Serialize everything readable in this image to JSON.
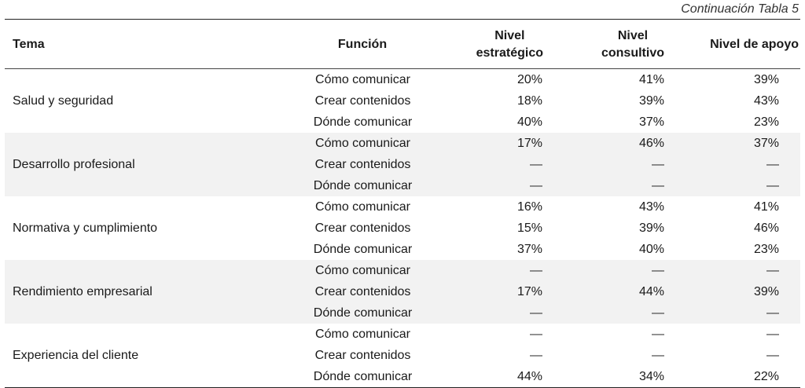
{
  "caption": "Continuación Tabla 5",
  "headers": {
    "tema": "Tema",
    "funcion": "Función",
    "estrategico_1": "Nivel",
    "estrategico_2": "estratégico",
    "consultivo_1": "Nivel",
    "consultivo_2": "consultivo",
    "apoyo": "Nivel de apoyo"
  },
  "groups": [
    {
      "tema": "Salud y seguridad",
      "rows": [
        {
          "funcion": "Cómo comunicar",
          "estrategico": "20%",
          "consultivo": "41%",
          "apoyo": "39%"
        },
        {
          "funcion": "Crear contenidos",
          "estrategico": "18%",
          "consultivo": "39%",
          "apoyo": "43%"
        },
        {
          "funcion": "Dónde comunicar",
          "estrategico": "40%",
          "consultivo": "37%",
          "apoyo": "23%"
        }
      ]
    },
    {
      "tema": "Desarrollo profesional",
      "rows": [
        {
          "funcion": "Cómo comunicar",
          "estrategico": "17%",
          "consultivo": "46%",
          "apoyo": "37%"
        },
        {
          "funcion": "Crear contenidos",
          "estrategico": "—",
          "consultivo": "—",
          "apoyo": "—"
        },
        {
          "funcion": "Dónde comunicar",
          "estrategico": "—",
          "consultivo": "—",
          "apoyo": "—"
        }
      ]
    },
    {
      "tema": "Normativa y cumplimiento",
      "rows": [
        {
          "funcion": "Cómo comunicar",
          "estrategico": "16%",
          "consultivo": "43%",
          "apoyo": "41%"
        },
        {
          "funcion": "Crear contenidos",
          "estrategico": "15%",
          "consultivo": "39%",
          "apoyo": "46%"
        },
        {
          "funcion": "Dónde comunicar",
          "estrategico": "37%",
          "consultivo": "40%",
          "apoyo": "23%"
        }
      ]
    },
    {
      "tema": "Rendimiento empresarial",
      "rows": [
        {
          "funcion": "Cómo comunicar",
          "estrategico": "—",
          "consultivo": "—",
          "apoyo": "—"
        },
        {
          "funcion": "Crear contenidos",
          "estrategico": "17%",
          "consultivo": "44%",
          "apoyo": "39%"
        },
        {
          "funcion": "Dónde comunicar",
          "estrategico": "—",
          "consultivo": "—",
          "apoyo": "—"
        }
      ]
    },
    {
      "tema": "Experiencia del cliente",
      "rows": [
        {
          "funcion": "Cómo comunicar",
          "estrategico": "—",
          "consultivo": "—",
          "apoyo": "—"
        },
        {
          "funcion": "Crear contenidos",
          "estrategico": "—",
          "consultivo": "—",
          "apoyo": "—"
        },
        {
          "funcion": "Dónde comunicar",
          "estrategico": "44%",
          "consultivo": "34%",
          "apoyo": "22%"
        }
      ]
    }
  ]
}
